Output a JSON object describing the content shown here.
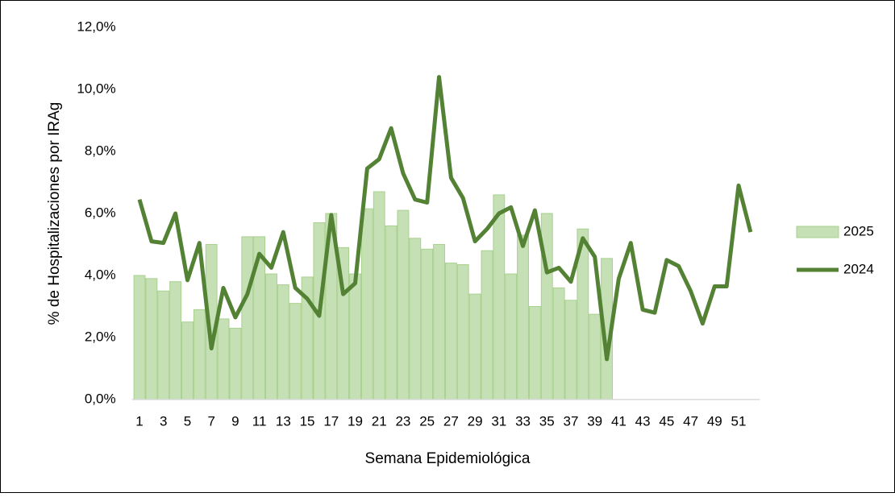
{
  "chart_data": {
    "type": "bar",
    "y_label": "% de Hospitalizaciones por IRAg",
    "x_label": "Semana Epidemiológica",
    "categories": [
      "1",
      null,
      "3",
      null,
      "5",
      null,
      "7",
      null,
      "9",
      null,
      "11",
      null,
      "13",
      null,
      "15",
      null,
      "17",
      null,
      "19",
      null,
      "21",
      null,
      "23",
      null,
      "25",
      null,
      "27",
      null,
      "29",
      null,
      "31",
      null,
      "33",
      null,
      "35",
      null,
      "37",
      null,
      "39",
      null,
      "41",
      null,
      "43",
      null,
      "45",
      null,
      "47",
      null,
      "49",
      null,
      "51",
      null
    ],
    "series": [
      {
        "name": "2025",
        "type": "bar",
        "color": "#c5e0b4",
        "edge": "#a9d18e",
        "values": [
          4.0,
          3.9,
          3.5,
          3.8,
          2.5,
          2.9,
          5.0,
          2.6,
          2.3,
          5.25,
          5.25,
          4.05,
          3.7,
          3.1,
          3.95,
          5.7,
          6.0,
          4.9,
          4.05,
          6.15,
          6.7,
          5.6,
          6.1,
          5.2,
          4.85,
          5.0,
          4.4,
          4.35,
          3.4,
          4.8,
          6.6,
          4.05,
          5.3,
          3.0,
          6.0,
          3.6,
          3.2,
          5.5,
          2.75,
          4.55,
          null,
          null,
          null,
          null,
          null,
          null,
          null,
          null,
          null,
          null,
          null,
          null
        ]
      },
      {
        "name": "2024",
        "type": "line",
        "color": "#548235",
        "values": [
          6.45,
          5.1,
          5.05,
          6.0,
          3.85,
          5.05,
          1.65,
          3.6,
          2.65,
          3.4,
          4.7,
          4.25,
          5.4,
          3.6,
          3.25,
          2.7,
          5.95,
          3.4,
          3.75,
          7.45,
          7.75,
          8.75,
          7.3,
          6.45,
          6.35,
          10.4,
          7.15,
          6.5,
          5.1,
          5.5,
          6.0,
          6.2,
          4.95,
          6.1,
          4.1,
          4.25,
          3.8,
          5.2,
          4.6,
          1.3,
          3.9,
          5.05,
          2.9,
          2.8,
          4.5,
          4.3,
          3.5,
          2.45,
          3.65,
          3.65,
          6.9,
          5.4
        ]
      }
    ],
    "ylim": [
      0,
      12
    ],
    "yticks": [
      {
        "value": 0,
        "label": "0,0%"
      },
      {
        "value": 2,
        "label": "2,0%"
      },
      {
        "value": 4,
        "label": "4,0%"
      },
      {
        "value": 6,
        "label": "6,0%"
      },
      {
        "value": 8,
        "label": "8,0%"
      },
      {
        "value": 10,
        "label": "10,0%"
      },
      {
        "value": 12,
        "label": "12,0%"
      }
    ],
    "grid": false,
    "legend": "right"
  }
}
